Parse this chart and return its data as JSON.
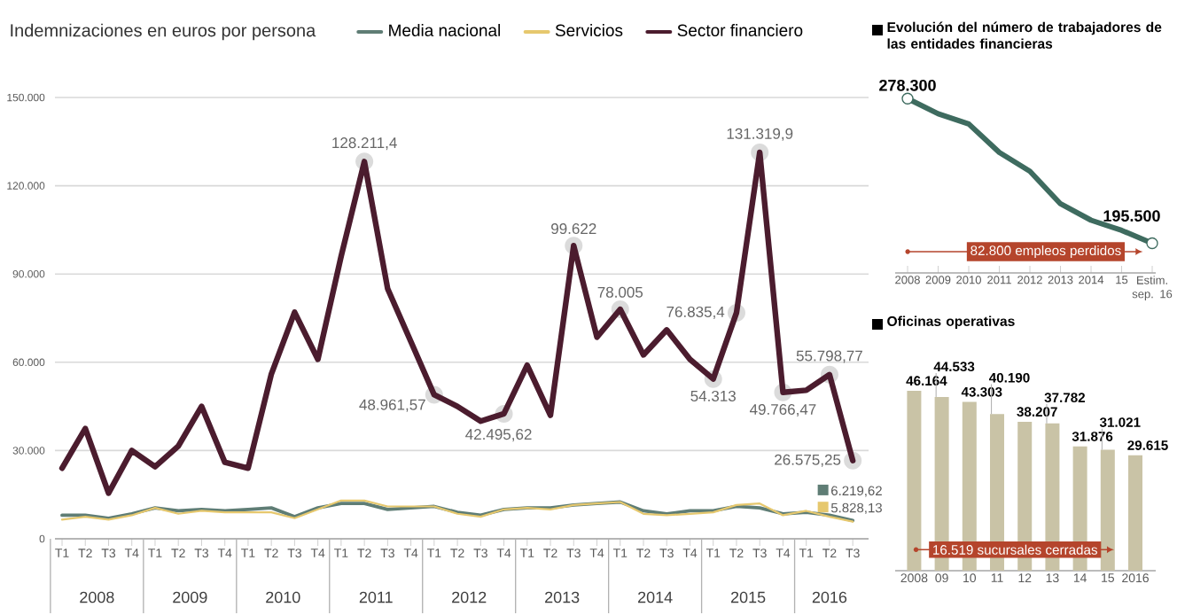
{
  "chart_data": [
    {
      "type": "line",
      "title": "Indemnizaciones en euros por persona",
      "categories": [
        "T1",
        "T2",
        "T3",
        "T4",
        "T1",
        "T2",
        "T3",
        "T4",
        "T1",
        "T2",
        "T3",
        "T4",
        "T1",
        "T2",
        "T3",
        "T4",
        "T1",
        "T2",
        "T3",
        "T4",
        "T1",
        "T2",
        "T3",
        "T4",
        "T1",
        "T2",
        "T3",
        "T4",
        "T1",
        "T2",
        "T3",
        "T4",
        "T1",
        "T2",
        "T3"
      ],
      "annotations": [
        "2008",
        "2009",
        "2010",
        "2011",
        "2012",
        "2013",
        "2014",
        "2015",
        "2016"
      ],
      "series": [
        {
          "name": "Media nacional",
          "color": "#5f7d75",
          "values": [
            8000,
            8000,
            7000,
            8500,
            10500,
            9500,
            10000,
            9500,
            10000,
            10500,
            7500,
            10500,
            12000,
            12000,
            10000,
            10500,
            11000,
            9000,
            8000,
            10000,
            10500,
            10500,
            11500,
            12000,
            12500,
            9500,
            8500,
            9500,
            9500,
            11000,
            10500,
            8500,
            9000,
            8000,
            6219.62
          ],
          "value_labels": [
            null,
            null,
            null,
            null,
            null,
            null,
            null,
            null,
            null,
            null,
            null,
            null,
            null,
            null,
            null,
            null,
            null,
            null,
            null,
            null,
            null,
            null,
            null,
            null,
            null,
            null,
            null,
            null,
            null,
            null,
            null,
            null,
            null,
            null,
            "6.219,62"
          ]
        },
        {
          "name": "Servicios",
          "color": "#e6c86e",
          "values": [
            6500,
            7500,
            6500,
            8000,
            10500,
            8500,
            9500,
            9000,
            9000,
            9000,
            7000,
            10000,
            13000,
            13000,
            11000,
            11000,
            11000,
            8500,
            7500,
            10000,
            10500,
            10000,
            11500,
            12000,
            12500,
            8500,
            8000,
            8500,
            9000,
            11500,
            12000,
            8000,
            9500,
            7500,
            5828.13
          ],
          "value_labels": [
            null,
            null,
            null,
            null,
            null,
            null,
            null,
            null,
            null,
            null,
            null,
            null,
            null,
            null,
            null,
            null,
            null,
            null,
            null,
            null,
            null,
            null,
            null,
            null,
            null,
            null,
            null,
            null,
            null,
            null,
            null,
            null,
            null,
            null,
            "5.828,13"
          ]
        },
        {
          "name": "Sector financiero",
          "color": "#4b1c2e",
          "values": [
            24000,
            37500,
            15500,
            30000,
            24500,
            31500,
            45000,
            26000,
            24000,
            56000,
            77000,
            61000,
            96000,
            128211.4,
            85000,
            67000,
            48961.57,
            45000,
            40000,
            42495.62,
            59000,
            42000,
            99622,
            68500,
            78005,
            62500,
            71000,
            61000,
            54313,
            76835.4,
            131319.9,
            49766.47,
            50500,
            55798.77,
            26575.25
          ],
          "value_labels": [
            null,
            null,
            null,
            null,
            null,
            null,
            null,
            null,
            null,
            null,
            null,
            null,
            null,
            "128.211,4",
            null,
            null,
            "48.961,57",
            null,
            null,
            "42.495,62",
            null,
            null,
            "99.622",
            null,
            "78.005",
            null,
            null,
            null,
            "54.313",
            "76.835,4",
            "131.319,9",
            "49.766,47",
            null,
            "55.798,77",
            "26.575,25"
          ]
        }
      ],
      "ylim": [
        0,
        150000
      ],
      "yticks": [
        0,
        {
          "value": 30000,
          "label": "30.000"
        },
        {
          "value": 60000,
          "label": "60.000"
        },
        {
          "value": 90000,
          "label": "90.000"
        },
        {
          "value": 120000,
          "label": "120.000"
        },
        {
          "value": 150000,
          "label": "150.000"
        }
      ],
      "grid": "y",
      "legend": "top"
    },
    {
      "type": "line",
      "title": "Evolución del número de trabajadores de las entidades financieras",
      "categories": [
        "2008",
        "2009",
        "2010",
        "2011",
        "2012",
        "2013",
        "2014",
        "15",
        "Estim. sep. 16"
      ],
      "series": [
        {
          "color": "#3e6b5f",
          "values": [
            278300,
            269600,
            263800,
            247500,
            236700,
            218100,
            208700,
            202900,
            195500
          ],
          "value_labels": [
            "278.300",
            null,
            null,
            null,
            null,
            null,
            null,
            null,
            "195.500"
          ]
        }
      ],
      "tick_labels": "x",
      "annotations": [
        "82.800 empleos perdidos"
      ]
    },
    {
      "type": "bar",
      "title": "Oficinas operativas",
      "categories": [
        "2008",
        "09",
        "10",
        "11",
        "12",
        "13",
        "14",
        "15",
        "2016"
      ],
      "values": [
        46164,
        44533,
        43303,
        40190,
        38207,
        37782,
        31876,
        31021,
        29615
      ],
      "value_labels": [
        "46.164",
        "44.533",
        "43.303",
        "40.190",
        "38.207",
        "37.782",
        "31.876",
        "31.021",
        "29.615"
      ],
      "color": "#c9c3a6",
      "tick_labels": "x",
      "annotations": [
        "16.519 sucursales cerradas"
      ]
    }
  ]
}
